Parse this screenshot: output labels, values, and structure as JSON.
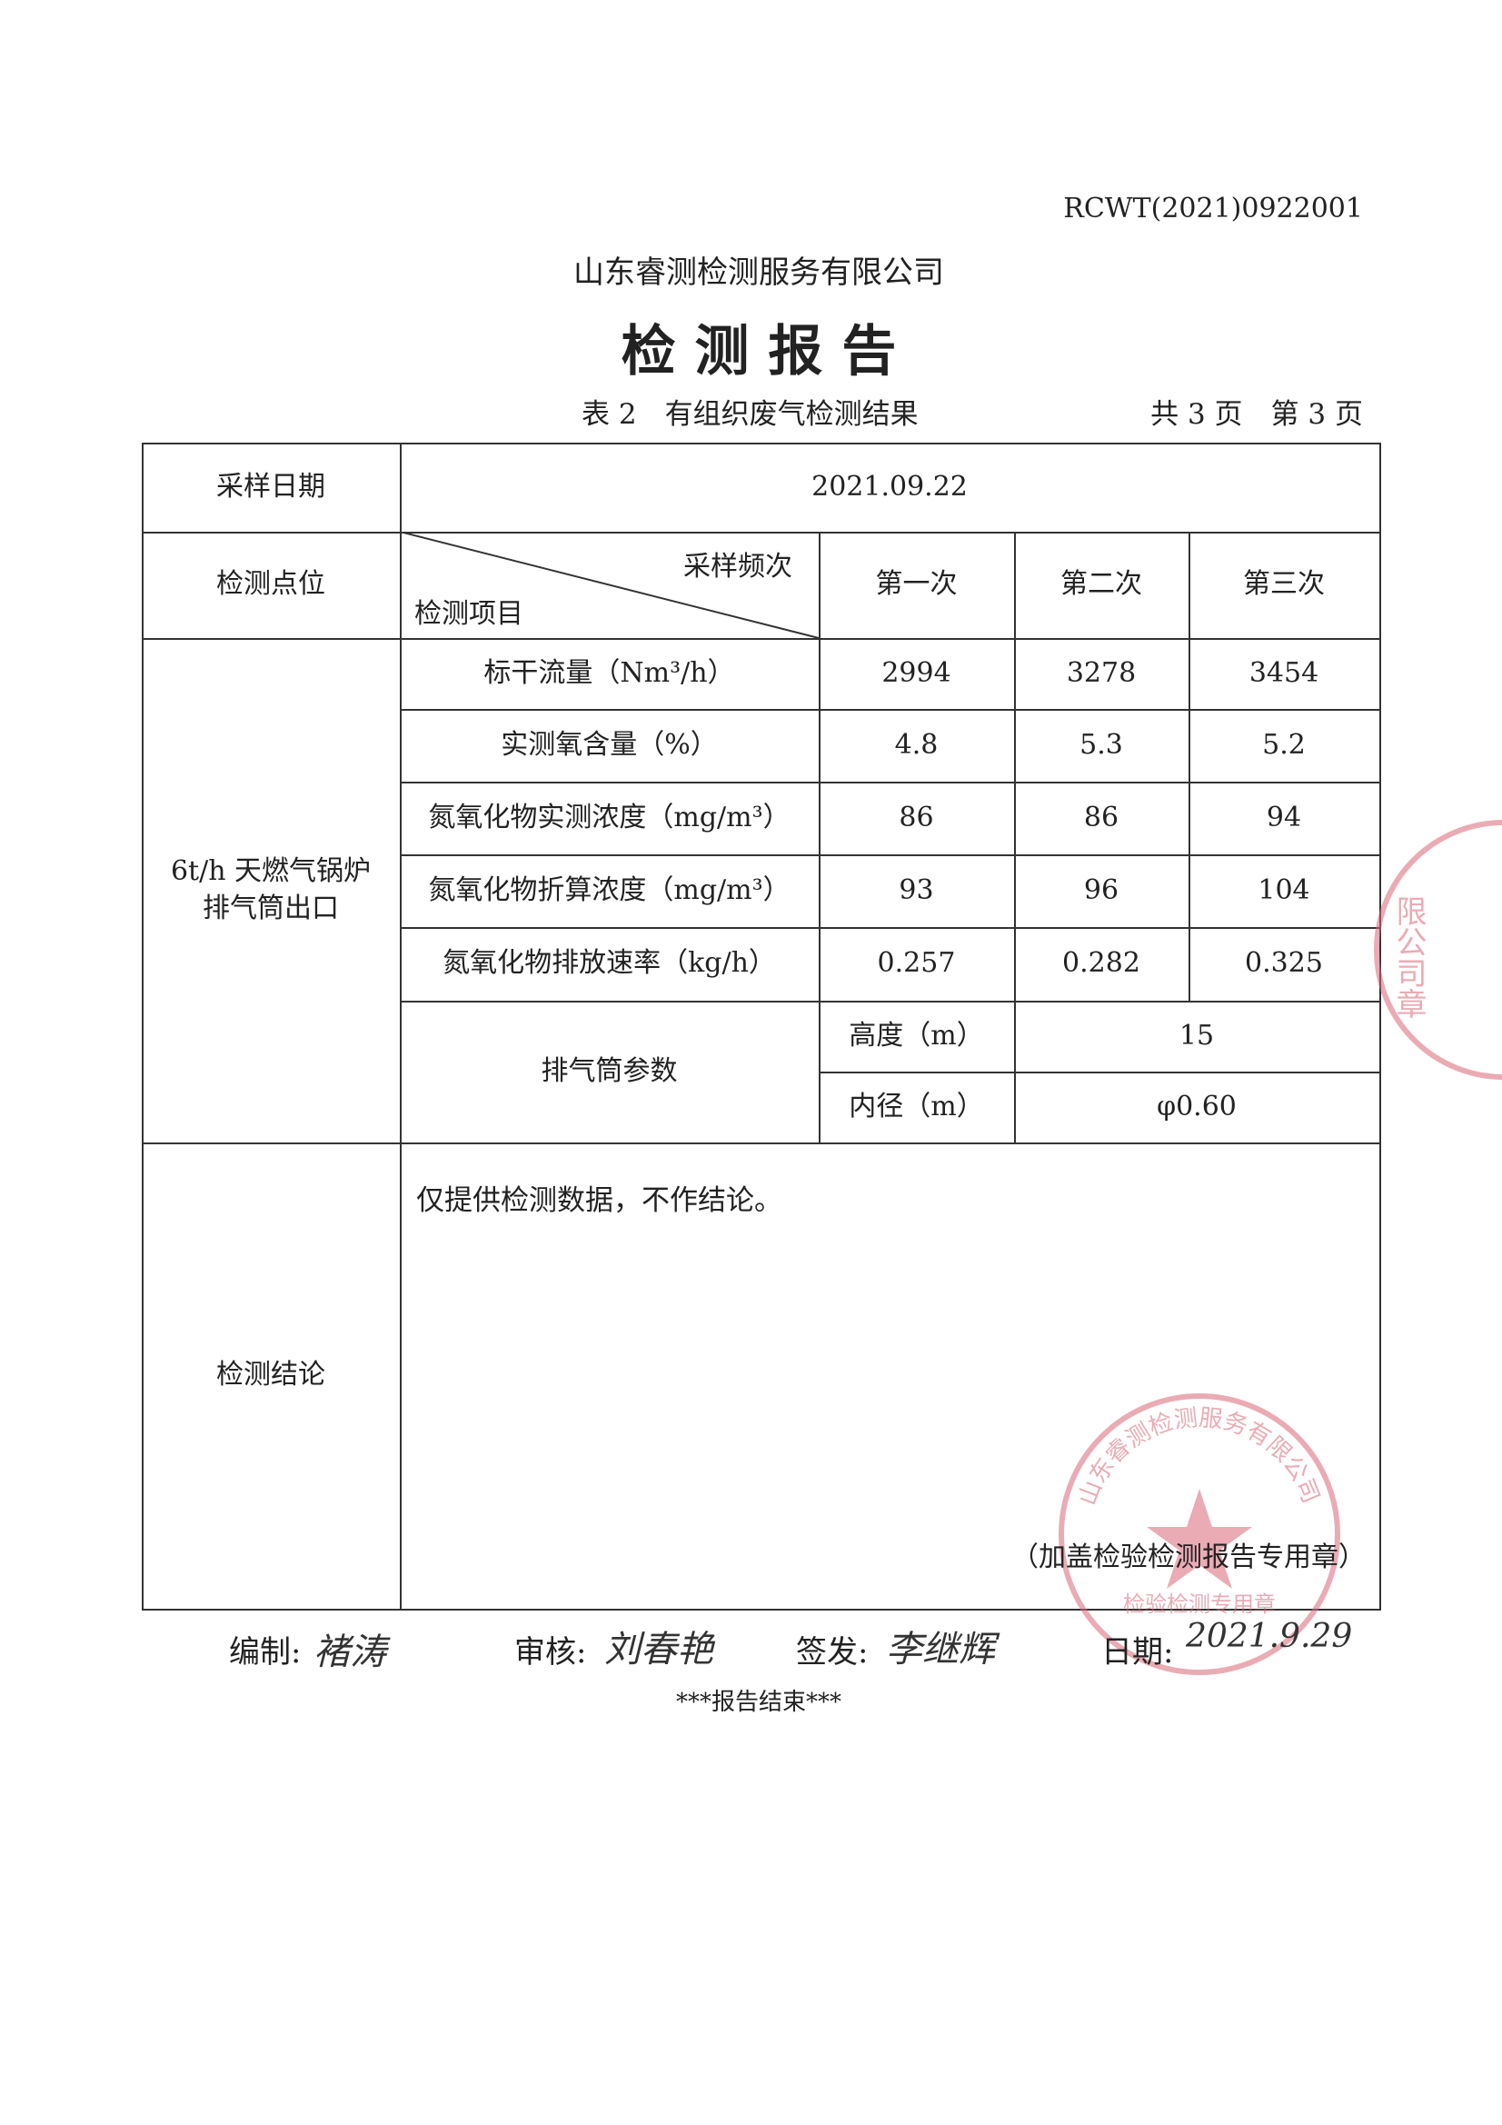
{
  "report_no": "RCWT(2021)0922001",
  "company": "山东睿测检测服务有限公司",
  "title": "检 测 报 告",
  "table_caption": "表 2　有组织废气检测结果",
  "page_info": "共 3 页　第 3 页",
  "table": {
    "sampling_date_label": "采样日期",
    "sampling_date": "2021.09.22",
    "point_label": "检测点位",
    "freq_label": "采样频次",
    "item_label": "检测项目",
    "runs": [
      "第一次",
      "第二次",
      "第三次"
    ],
    "point_name_line1": "6t/h 天燃气锅炉",
    "point_name_line2": "排气筒出口",
    "rows": [
      {
        "item": "标干流量（Nm³/h）",
        "values": [
          "2994",
          "3278",
          "3454"
        ]
      },
      {
        "item": "实测氧含量（%）",
        "values": [
          "4.8",
          "5.3",
          "5.2"
        ]
      },
      {
        "item": "氮氧化物实测浓度（mg/m³）",
        "values": [
          "86",
          "86",
          "94"
        ]
      },
      {
        "item": "氮氧化物折算浓度（mg/m³）",
        "values": [
          "93",
          "96",
          "104"
        ]
      },
      {
        "item": "氮氧化物排放速率（kg/h）",
        "values": [
          "0.257",
          "0.282",
          "0.325"
        ]
      }
    ],
    "stack_label": "排气筒参数",
    "stack_height_label": "高度（m）",
    "stack_height": "15",
    "stack_diameter_label": "内径（m）",
    "stack_diameter": "φ0.60",
    "conclusion_label": "检测结论",
    "conclusion": "仅提供检测数据，不作结论。",
    "seal_note": "（加盖检验检测报告专用章）"
  },
  "footer": {
    "compiled_label": "编制:",
    "compiled_sig": "褚涛",
    "reviewed_label": "审核:",
    "reviewed_sig": "刘春艳",
    "issued_label": "签发:",
    "issued_sig": "李继辉",
    "date_label": "日期:",
    "date_sig": "2021.9.29",
    "end": "***报告结束***"
  },
  "seals": {
    "main_text": "山东睿测检测服务有限公司",
    "sub_text": "检验检测专用章",
    "edge_text": "限公司章",
    "color": "#d9687a"
  }
}
